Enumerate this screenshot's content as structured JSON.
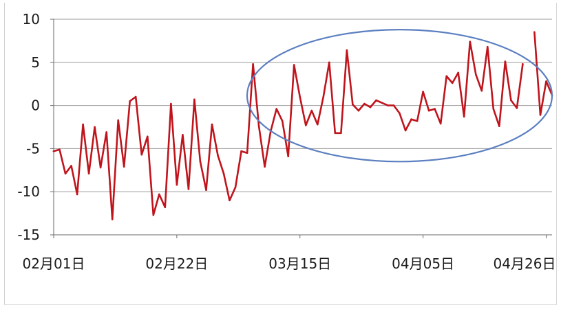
{
  "chart_data": {
    "type": "line",
    "title": "",
    "xlabel": "",
    "ylabel": "",
    "ylim": [
      -15,
      10
    ],
    "yticks": [
      10,
      5,
      0,
      -5,
      -10,
      -15
    ],
    "xlim": [
      "2001-02-01",
      "2001-04-27"
    ],
    "x_tick_labels": [
      {
        "date": "2001-02-01",
        "label": "02月01日"
      },
      {
        "date": "2001-02-22",
        "label": "02月22日"
      },
      {
        "date": "2001-03-15",
        "label": "03月15日"
      },
      {
        "date": "2001-04-05",
        "label": "04月05日"
      },
      {
        "date": "2001-04-26",
        "label": "04月26日"
      }
    ],
    "grid": "horizontal",
    "legend": "none",
    "series": [
      {
        "color": "#c0141c",
        "points": [
          {
            "x": "2001-02-01",
            "y": -5.3
          },
          {
            "x": "2001-02-02",
            "y": -5.1
          },
          {
            "x": "2001-02-03",
            "y": -7.9
          },
          {
            "x": "2001-02-04",
            "y": -7.0
          },
          {
            "x": "2001-02-05",
            "y": -10.3
          },
          {
            "x": "2001-02-06",
            "y": -2.2
          },
          {
            "x": "2001-02-07",
            "y": -7.9
          },
          {
            "x": "2001-02-08",
            "y": -2.5
          },
          {
            "x": "2001-02-09",
            "y": -7.2
          },
          {
            "x": "2001-02-10",
            "y": -3.1
          },
          {
            "x": "2001-02-11",
            "y": -13.2
          },
          {
            "x": "2001-02-12",
            "y": -1.7
          },
          {
            "x": "2001-02-13",
            "y": -7.1
          },
          {
            "x": "2001-02-14",
            "y": 0.5
          },
          {
            "x": "2001-02-15",
            "y": 1.0
          },
          {
            "x": "2001-02-16",
            "y": -5.7
          },
          {
            "x": "2001-02-17",
            "y": -3.6
          },
          {
            "x": "2001-02-18",
            "y": -12.7
          },
          {
            "x": "2001-02-19",
            "y": -10.3
          },
          {
            "x": "2001-02-20",
            "y": -11.8
          },
          {
            "x": "2001-02-21",
            "y": 0.2
          },
          {
            "x": "2001-02-22",
            "y": -9.2
          },
          {
            "x": "2001-02-23",
            "y": -3.4
          },
          {
            "x": "2001-02-24",
            "y": -9.7
          },
          {
            "x": "2001-02-25",
            "y": 0.7
          },
          {
            "x": "2001-02-26",
            "y": -6.5
          },
          {
            "x": "2001-02-27",
            "y": -9.8
          },
          {
            "x": "2001-02-28",
            "y": -2.2
          },
          {
            "x": "2001-03-01",
            "y": -5.8
          },
          {
            "x": "2001-03-02",
            "y": -7.9
          },
          {
            "x": "2001-03-03",
            "y": -11.0
          },
          {
            "x": "2001-03-04",
            "y": -9.5
          },
          {
            "x": "2001-03-05",
            "y": -5.3
          },
          {
            "x": "2001-03-06",
            "y": -5.5
          },
          {
            "x": "2001-03-07",
            "y": 4.8
          },
          {
            "x": "2001-03-08",
            "y": -2.4
          },
          {
            "x": "2001-03-09",
            "y": -7.1
          },
          {
            "x": "2001-03-10",
            "y": -3.0
          },
          {
            "x": "2001-03-11",
            "y": -0.4
          },
          {
            "x": "2001-03-12",
            "y": -1.8
          },
          {
            "x": "2001-03-13",
            "y": -5.9
          },
          {
            "x": "2001-03-14",
            "y": 4.7
          },
          {
            "x": "2001-03-15",
            "y": 1.0
          },
          {
            "x": "2001-03-16",
            "y": -2.3
          },
          {
            "x": "2001-03-17",
            "y": -0.6
          },
          {
            "x": "2001-03-18",
            "y": -2.2
          },
          {
            "x": "2001-03-19",
            "y": 1.0
          },
          {
            "x": "2001-03-20",
            "y": 5.0
          },
          {
            "x": "2001-03-21",
            "y": -3.2
          },
          {
            "x": "2001-03-22",
            "y": -3.2
          },
          {
            "x": "2001-03-23",
            "y": 6.4
          },
          {
            "x": "2001-03-24",
            "y": 0.1
          },
          {
            "x": "2001-03-25",
            "y": -0.6
          },
          {
            "x": "2001-03-26",
            "y": 0.2
          },
          {
            "x": "2001-03-27",
            "y": -0.2
          },
          {
            "x": "2001-03-28",
            "y": 0.6
          },
          {
            "x": "2001-03-29",
            "y": 0.3
          },
          {
            "x": "2001-03-30",
            "y": 0.0
          },
          {
            "x": "2001-03-31",
            "y": 0.0
          },
          {
            "x": "2001-04-01",
            "y": -0.9
          },
          {
            "x": "2001-04-02",
            "y": -2.9
          },
          {
            "x": "2001-04-03",
            "y": -1.6
          },
          {
            "x": "2001-04-04",
            "y": -1.8
          },
          {
            "x": "2001-04-05",
            "y": 1.6
          },
          {
            "x": "2001-04-06",
            "y": -0.6
          },
          {
            "x": "2001-04-07",
            "y": -0.4
          },
          {
            "x": "2001-04-08",
            "y": -2.1
          },
          {
            "x": "2001-04-09",
            "y": 3.4
          },
          {
            "x": "2001-04-10",
            "y": 2.6
          },
          {
            "x": "2001-04-11",
            "y": 3.8
          },
          {
            "x": "2001-04-12",
            "y": -1.3
          },
          {
            "x": "2001-04-13",
            "y": 7.4
          },
          {
            "x": "2001-04-14",
            "y": 3.6
          },
          {
            "x": "2001-04-15",
            "y": 1.7
          },
          {
            "x": "2001-04-16",
            "y": 6.8
          },
          {
            "x": "2001-04-17",
            "y": -0.4
          },
          {
            "x": "2001-04-18",
            "y": -2.4
          },
          {
            "x": "2001-04-19",
            "y": 5.1
          },
          {
            "x": "2001-04-20",
            "y": 0.6
          },
          {
            "x": "2001-04-21",
            "y": -0.3
          },
          {
            "x": "2001-04-22",
            "y": 4.8
          },
          {
            "x": "2001-04-24",
            "y": 8.5
          },
          {
            "x": "2001-04-25",
            "y": -1.1
          },
          {
            "x": "2001-04-26",
            "y": 2.8
          },
          {
            "x": "2001-04-27",
            "y": 1.2
          }
        ]
      }
    ],
    "annotations": [
      {
        "type": "ellipse",
        "color": "#5b7fc0",
        "x_range": [
          "2001-03-06",
          "2001-04-27"
        ],
        "y_range": [
          -6.5,
          8.8
        ]
      }
    ],
    "colors": {
      "line": "#c0141c",
      "ellipse": "#5b7fc0",
      "grid": "#9a9a9a",
      "axis": "#6a6a6a"
    }
  }
}
